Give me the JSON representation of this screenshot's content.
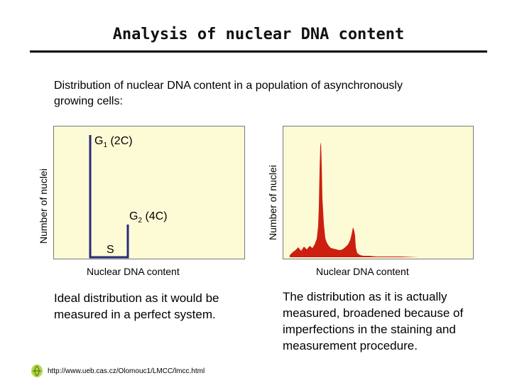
{
  "slide": {
    "title": "Analysis of nuclear DNA content",
    "intro": "Distribution of nuclear DNA content in a population of asynchronously growing cells:",
    "source_url": "http://www.ueb.cas.cz/Olomouc1/LMCC/lmcc.html"
  },
  "ideal_panel": {
    "ylabel": "Number of nuclei",
    "xlabel": "Nuclear DNA content",
    "g1_label": "G",
    "g1_sub": "1",
    "g1_suffix": " (2C)",
    "g2_label": "G",
    "g2_sub": "2",
    "g2_suffix": " (4C)",
    "s_label": "S",
    "caption": "Ideal distribution as it would be measured in a perfect system.",
    "line_color": "#2b2a7a"
  },
  "measured_panel": {
    "ylabel": "Number of nuclei",
    "xlabel": "Nuclear DNA content",
    "caption": "The distribution as it is actually measured, broadened because of imperfections in the staining and measurement procedure.",
    "fill_color": "#cc1f10"
  },
  "colors": {
    "panel_background": "#fdfbd6"
  }
}
